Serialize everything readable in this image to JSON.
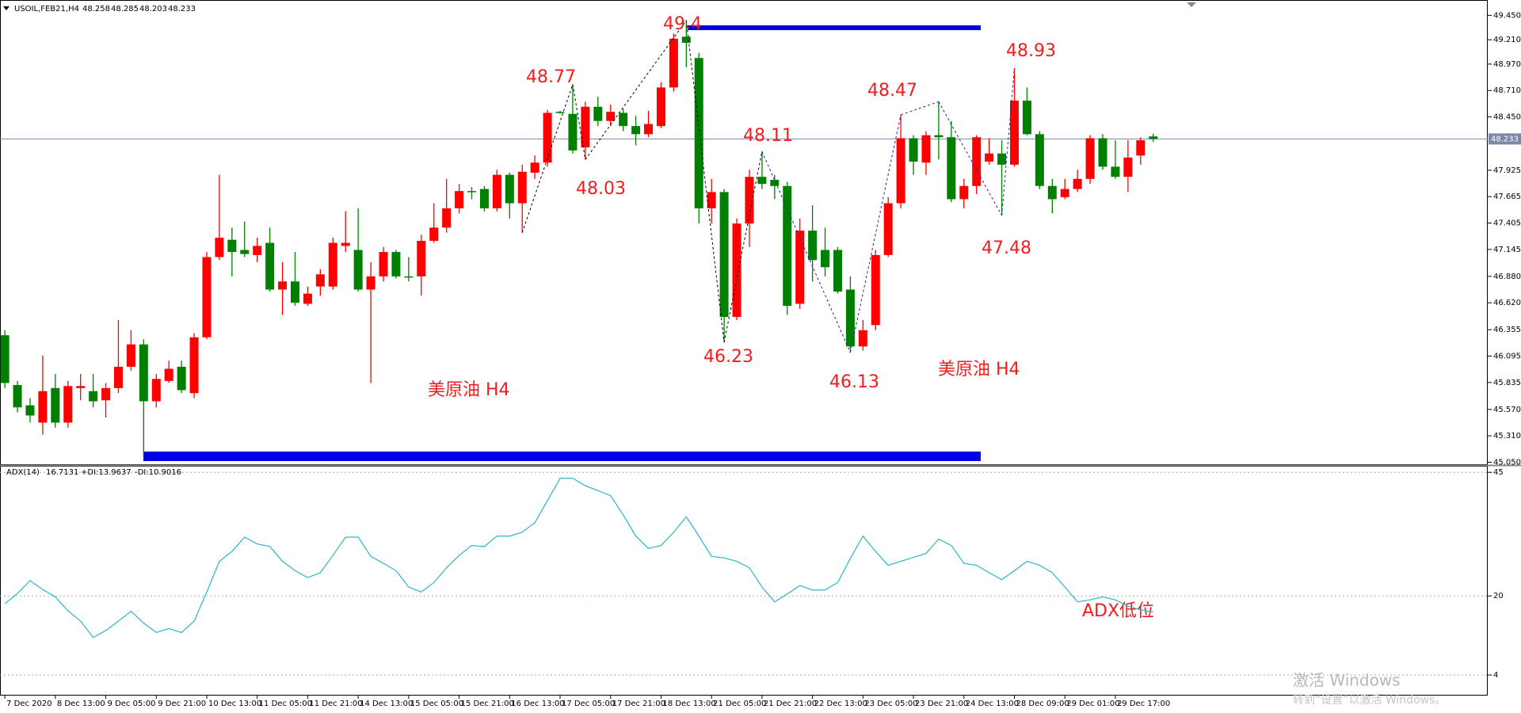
{
  "chart_data": [
    {
      "type": "candlestick",
      "title": "USOIL,FEB21,H4",
      "categories": [
        "7 Dec 2020",
        null,
        null,
        null,
        "8 Dec 13:00",
        null,
        null,
        null,
        "9 Dec 05:00",
        null,
        null,
        null,
        "9 Dec 21:00",
        null,
        null,
        null,
        "10 Dec 13:00",
        null,
        null,
        null,
        "11 Dec 05:00",
        null,
        null,
        null,
        "11 Dec 21:00",
        null,
        null,
        null,
        "14 Dec 13:00",
        null,
        null,
        null,
        "15 Dec 05:00",
        null,
        null,
        null,
        "15 Dec 21:00",
        null,
        null,
        null,
        "16 Dec 13:00",
        null,
        null,
        null,
        "17 Dec 05:00",
        null,
        null,
        null,
        "17 Dec 21:00",
        null,
        null,
        null,
        "18 Dec 13:00",
        null,
        null,
        null,
        "21 Dec 05:00",
        null,
        null,
        null,
        "21 Dec 21:00",
        null,
        null,
        null,
        "22 Dec 13:00",
        null,
        null,
        null,
        "23 Dec 05:00",
        null,
        null,
        null,
        "23 Dec 21:00",
        null,
        null,
        null,
        "24 Dec 13:00",
        null,
        null,
        null,
        "28 Dec 09:00",
        null,
        null,
        null,
        "29 Dec 01:00",
        null,
        null,
        null,
        "29 Dec 17:00",
        null,
        null,
        null
      ],
      "open": [
        46.3,
        45.81,
        45.61,
        45.44,
        45.78,
        45.44,
        45.78,
        45.75,
        45.66,
        45.78,
        45.99,
        46.21,
        45.65,
        45.85,
        45.99,
        45.73,
        46.28,
        47.07,
        47.24,
        47.14,
        47.09,
        47.21,
        46.75,
        46.83,
        46.61,
        46.78,
        46.78,
        47.18,
        47.14,
        46.75,
        46.88,
        47.12,
        46.88,
        46.88,
        47.23,
        47.36,
        47.55,
        47.72,
        47.74,
        47.55,
        47.88,
        47.6,
        47.9,
        48.0,
        48.5,
        48.48,
        48.15,
        48.55,
        48.41,
        48.49,
        48.36,
        48.28,
        48.36,
        48.74,
        49.24,
        49.03,
        47.55,
        47.71,
        46.48,
        47.4,
        47.86,
        47.83,
        47.77,
        46.61,
        47.33,
        47.14,
        47.14,
        46.75,
        46.19,
        46.4,
        47.09,
        47.6,
        48.24,
        48.0,
        48.27,
        48.25,
        47.64,
        47.77,
        48.01,
        48.09,
        47.98,
        48.61,
        48.28,
        47.77,
        47.66,
        47.74,
        47.84,
        48.24,
        47.96,
        47.86,
        48.07,
        48.258
      ],
      "high": [
        46.35,
        45.85,
        45.68,
        46.1,
        45.92,
        45.85,
        45.92,
        45.92,
        45.83,
        46.45,
        46.35,
        46.26,
        45.92,
        46.05,
        46.05,
        46.32,
        47.12,
        47.88,
        47.36,
        47.42,
        47.26,
        47.36,
        47.02,
        47.12,
        46.78,
        46.95,
        47.26,
        47.52,
        47.55,
        47.02,
        47.17,
        47.14,
        47.07,
        47.29,
        47.6,
        47.84,
        47.79,
        47.76,
        47.77,
        47.93,
        47.9,
        47.98,
        48.07,
        48.52,
        48.51,
        48.77,
        48.6,
        48.65,
        48.57,
        48.53,
        48.46,
        48.51,
        48.79,
        49.27,
        49.4,
        49.08,
        47.84,
        47.74,
        47.45,
        47.93,
        48.11,
        47.88,
        47.81,
        47.45,
        47.58,
        47.36,
        47.17,
        46.88,
        46.45,
        47.14,
        47.66,
        48.47,
        48.27,
        48.31,
        48.6,
        48.41,
        47.84,
        48.27,
        48.24,
        48.22,
        48.93,
        48.74,
        48.31,
        47.84,
        47.84,
        47.93,
        48.27,
        48.28,
        48.22,
        48.22,
        48.25,
        48.285
      ],
      "low": [
        45.78,
        45.54,
        45.44,
        45.32,
        45.39,
        45.39,
        45.66,
        45.59,
        45.49,
        45.73,
        45.95,
        45.11,
        45.59,
        45.83,
        45.73,
        45.68,
        46.26,
        47.04,
        46.88,
        47.07,
        47.02,
        46.73,
        46.5,
        46.59,
        46.59,
        46.69,
        46.75,
        47.12,
        46.73,
        45.83,
        46.83,
        46.86,
        46.83,
        46.69,
        47.21,
        47.31,
        47.5,
        47.64,
        47.52,
        47.52,
        47.45,
        47.31,
        47.84,
        47.96,
        48.48,
        48.09,
        48.03,
        48.36,
        48.36,
        48.31,
        48.17,
        48.25,
        48.34,
        48.7,
        48.94,
        47.4,
        47.4,
        46.23,
        46.45,
        47.17,
        47.74,
        47.64,
        46.5,
        46.56,
        46.83,
        46.88,
        46.71,
        46.13,
        46.15,
        46.35,
        47.07,
        47.55,
        47.88,
        47.88,
        48.03,
        47.61,
        47.55,
        47.69,
        47.98,
        47.48,
        47.96,
        48.27,
        47.74,
        47.5,
        47.64,
        47.71,
        47.79,
        47.93,
        47.84,
        47.71,
        47.98,
        48.203
      ],
      "close": [
        45.83,
        45.59,
        45.51,
        45.75,
        45.44,
        45.8,
        45.8,
        45.65,
        45.78,
        45.99,
        46.21,
        45.65,
        45.87,
        45.97,
        45.76,
        46.28,
        47.07,
        47.26,
        47.12,
        47.1,
        47.18,
        46.75,
        46.83,
        46.62,
        46.71,
        46.9,
        47.21,
        47.21,
        46.75,
        46.88,
        47.12,
        46.88,
        46.87,
        47.23,
        47.36,
        47.55,
        47.72,
        47.71,
        47.55,
        47.88,
        47.6,
        47.91,
        48.0,
        48.49,
        48.49,
        48.12,
        48.55,
        48.41,
        48.5,
        48.36,
        48.28,
        48.38,
        48.74,
        49.22,
        49.18,
        47.55,
        47.71,
        46.48,
        47.4,
        47.86,
        47.79,
        47.77,
        46.59,
        47.33,
        47.04,
        46.97,
        46.73,
        46.19,
        46.35,
        47.09,
        47.6,
        48.24,
        48.01,
        48.27,
        48.25,
        47.64,
        47.77,
        48.25,
        48.09,
        47.98,
        48.61,
        48.28,
        47.77,
        47.64,
        47.74,
        47.84,
        48.24,
        47.96,
        47.86,
        48.05,
        48.22,
        48.233
      ],
      "up_color": "#ff0000",
      "down_color": "#008000",
      "price_line_color": "#7a8aa6",
      "ylim": [
        45.03,
        49.57
      ],
      "yticks": [
        {
          "value": 49.45,
          "label": "49.450"
        },
        {
          "value": 49.21,
          "label": "49.210"
        },
        {
          "value": 48.97,
          "label": "48.970"
        },
        {
          "value": 48.71,
          "label": "48.710"
        },
        {
          "value": 48.45,
          "label": "48.450"
        },
        47.925,
        47.665,
        47.405,
        47.145,
        {
          "value": 46.88,
          "label": "46.880"
        },
        {
          "value": 46.62,
          "label": "46.620"
        },
        46.355,
        46.095,
        45.835,
        {
          "value": 45.57,
          "label": "45.570"
        },
        {
          "value": 45.31,
          "label": "45.310"
        },
        {
          "value": 45.05,
          "label": "45.050"
        }
      ],
      "annotations": [
        "49.4",
        "48.77",
        "48.03",
        "48.11",
        "48.47",
        "48.93",
        "46.23",
        "46.13",
        "47.48",
        "美原油  H4",
        "美原油 H4",
        "ADX低位"
      ],
      "zigzag_color": "#000000"
    },
    {
      "type": "line",
      "title": "ADX(14)",
      "plus_di": "+DI:13.9637",
      "minus_di": "-DI:10.9016",
      "color": "#29b6c8",
      "values": [
        18.4,
        20.5,
        23.1,
        21.3,
        19.8,
        17.0,
        14.9,
        11.6,
        13.0,
        14.9,
        16.9,
        14.5,
        12.6,
        13.4,
        12.6,
        14.9,
        20.8,
        27.0,
        29.0,
        31.9,
        30.5,
        30.0,
        27.0,
        25.1,
        23.7,
        24.7,
        28.2,
        31.9,
        31.9,
        28.0,
        26.6,
        25.1,
        21.8,
        20.8,
        22.7,
        25.7,
        28.2,
        30.2,
        30.0,
        32.1,
        32.1,
        32.9,
        34.8,
        39.3,
        43.8,
        43.8,
        42.3,
        41.3,
        40.3,
        36.4,
        32.1,
        29.6,
        30.2,
        32.9,
        36.0,
        32.1,
        28.0,
        27.7,
        27.0,
        25.7,
        21.8,
        18.8,
        20.4,
        22.1,
        21.2,
        21.2,
        22.7,
        27.6,
        32.1,
        29.0,
        26.2,
        27.0,
        27.8,
        28.6,
        31.5,
        30.2,
        26.6,
        26.2,
        24.7,
        23.3,
        25.1,
        27.0,
        26.2,
        24.7,
        21.8,
        18.8,
        19.2,
        19.8,
        19.2,
        17.9,
        17.2,
        16.7131
      ],
      "ylim": [
        0,
        46
      ],
      "yticks": [
        45,
        20,
        4
      ],
      "grid": true
    }
  ],
  "watermark": {
    "line1": "激活 Windows",
    "line2": "转到“设置”以激活 Windows。"
  }
}
